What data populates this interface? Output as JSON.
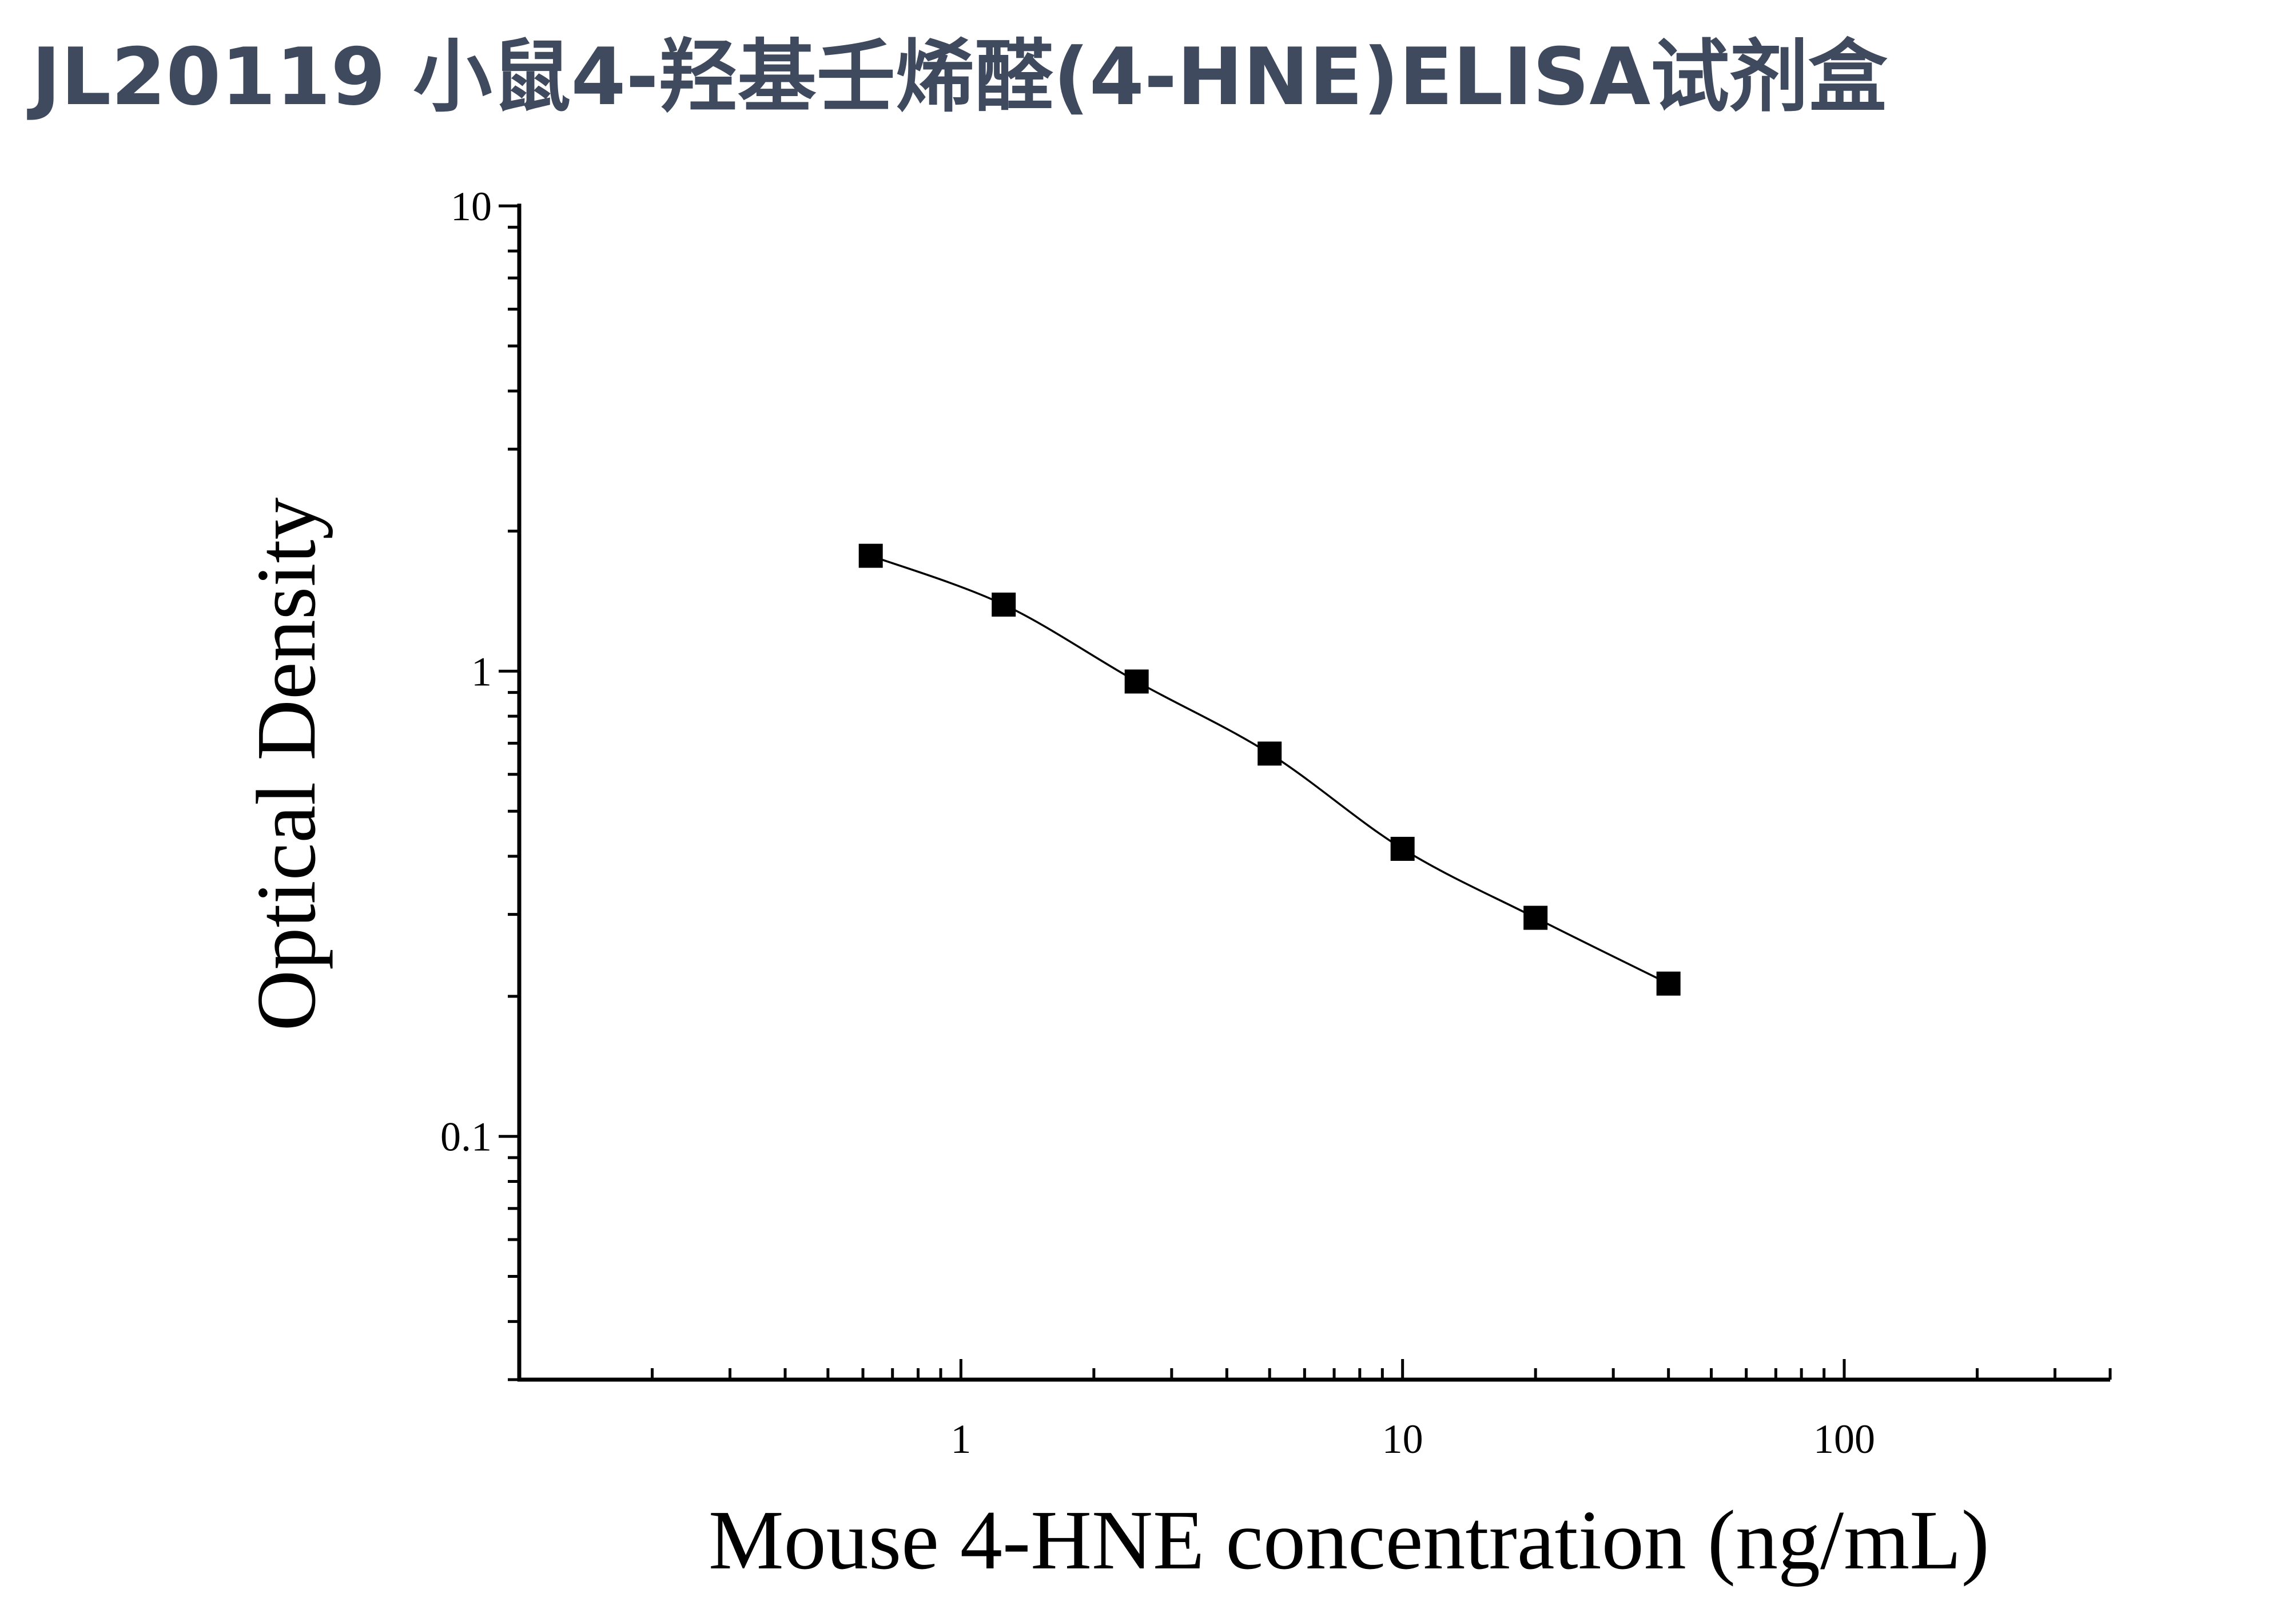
{
  "title": "JL20119 小鼠4-羟基壬烯醛(4-HNE)ELISA试剂盒",
  "chart_data": {
    "type": "scatter",
    "x_scale": "log",
    "y_scale": "log",
    "xlabel": "Mouse 4-HNE concentration (ng/mL)",
    "ylabel": "Optical Density",
    "xlim": [
      0.1,
      400
    ],
    "ylim": [
      0.03,
      10
    ],
    "x_ticks": [
      {
        "value": 1,
        "label": "1"
      },
      {
        "value": 10,
        "label": "10"
      },
      {
        "value": 100,
        "label": "100"
      }
    ],
    "y_ticks": [
      {
        "value": 0.1,
        "label": "0.1"
      },
      {
        "value": 1,
        "label": "1"
      },
      {
        "value": 10,
        "label": "10"
      }
    ],
    "grid": false,
    "legend": "none",
    "series": [
      {
        "marker": "square",
        "color": "#000000",
        "fit_line": true,
        "points": [
          {
            "x": 0.625,
            "y": 1.77
          },
          {
            "x": 1.25,
            "y": 1.39
          },
          {
            "x": 2.5,
            "y": 0.95
          },
          {
            "x": 5,
            "y": 0.665
          },
          {
            "x": 10,
            "y": 0.415
          },
          {
            "x": 20,
            "y": 0.295
          },
          {
            "x": 40,
            "y": 0.213
          }
        ]
      }
    ]
  }
}
